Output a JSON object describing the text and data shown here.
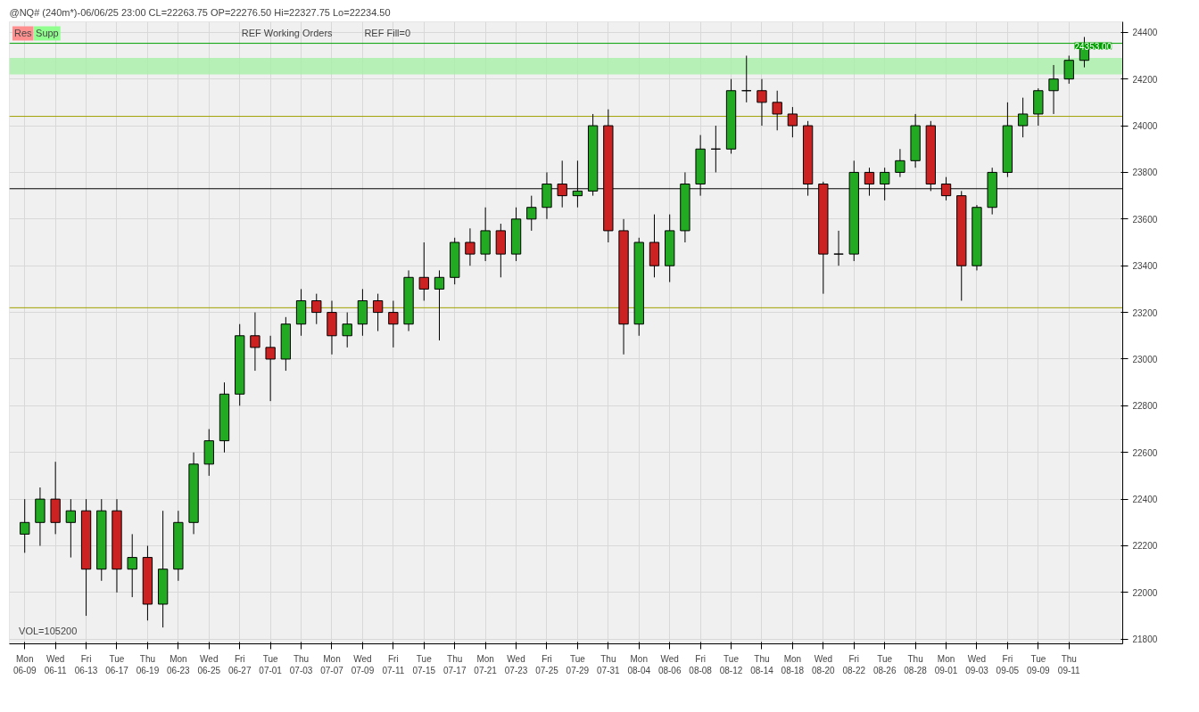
{
  "chart_data": {
    "type": "candlestick",
    "title": "@NQ# (240m*)-06/06/25 23:00 CL=22263.75 OP=22276.50 Hi=22327.75 Lo=22234.50",
    "categories": [
      "Mon\n06-09",
      null,
      "Wed\n06-11",
      null,
      "Fri\n06-13",
      null,
      "Tue\n06-17",
      null,
      "Thu\n06-19",
      null,
      "Mon\n06-23",
      null,
      "Wed\n06-25",
      null,
      "Fri\n06-27",
      null,
      "Tue\n07-01",
      null,
      "Thu\n07-03",
      null,
      "Mon\n07-07",
      null,
      "Wed\n07-09",
      null,
      "Fri\n07-11",
      null,
      "Tue\n07-15",
      null,
      "Thu\n07-17",
      null,
      "Mon\n07-21",
      null,
      "Wed\n07-23",
      null,
      "Fri\n07-25",
      null,
      "Tue\n07-29",
      null,
      "Thu\n07-31",
      null,
      "Mon\n08-04",
      null,
      "Wed\n08-06",
      null,
      "Fri\n08-08",
      null,
      "Tue\n08-12",
      null,
      "Thu\n08-14",
      null,
      "Mon\n08-18",
      null,
      "Wed\n08-20",
      null,
      "Fri\n08-22",
      null,
      "Tue\n08-26",
      null,
      "Thu\n08-28",
      null,
      "Mon\n09-01",
      null,
      "Wed\n09-03",
      null,
      "Fri\n09-05",
      null,
      "Tue\n09-09",
      null,
      "Thu\n09-11",
      null
    ],
    "ohlc": [
      [
        22250,
        22400,
        22170,
        22300
      ],
      [
        22300,
        22450,
        22200,
        22400
      ],
      [
        22400,
        22560,
        22250,
        22300
      ],
      [
        22300,
        22400,
        22150,
        22350
      ],
      [
        22350,
        22400,
        21900,
        22100
      ],
      [
        22100,
        22400,
        22050,
        22350
      ],
      [
        22350,
        22400,
        22000,
        22100
      ],
      [
        22100,
        22250,
        21980,
        22150
      ],
      [
        22150,
        22200,
        21880,
        21950
      ],
      [
        21950,
        22350,
        21850,
        22100
      ],
      [
        22100,
        22350,
        22050,
        22300
      ],
      [
        22300,
        22600,
        22250,
        22550
      ],
      [
        22550,
        22700,
        22500,
        22650
      ],
      [
        22650,
        22900,
        22600,
        22850
      ],
      [
        22850,
        23150,
        22800,
        23100
      ],
      [
        23100,
        23200,
        22950,
        23050
      ],
      [
        23050,
        23100,
        22820,
        23000
      ],
      [
        23000,
        23180,
        22950,
        23150
      ],
      [
        23150,
        23300,
        23100,
        23250
      ],
      [
        23250,
        23280,
        23150,
        23200
      ],
      [
        23200,
        23250,
        23020,
        23100
      ],
      [
        23100,
        23200,
        23050,
        23150
      ],
      [
        23150,
        23300,
        23100,
        23250
      ],
      [
        23250,
        23280,
        23120,
        23200
      ],
      [
        23200,
        23250,
        23050,
        23150
      ],
      [
        23150,
        23380,
        23120,
        23350
      ],
      [
        23350,
        23500,
        23250,
        23300
      ],
      [
        23300,
        23380,
        23080,
        23350
      ],
      [
        23350,
        23520,
        23320,
        23500
      ],
      [
        23500,
        23560,
        23400,
        23450
      ],
      [
        23450,
        23650,
        23420,
        23550
      ],
      [
        23550,
        23580,
        23350,
        23450
      ],
      [
        23450,
        23650,
        23420,
        23600
      ],
      [
        23600,
        23700,
        23550,
        23650
      ],
      [
        23650,
        23800,
        23600,
        23750
      ],
      [
        23750,
        23850,
        23650,
        23700
      ],
      [
        23700,
        23850,
        23650,
        23720
      ],
      [
        23720,
        24050,
        23700,
        24000
      ],
      [
        24000,
        24070,
        23500,
        23550
      ],
      [
        23550,
        23600,
        23020,
        23150
      ],
      [
        23150,
        23520,
        23100,
        23500
      ],
      [
        23500,
        23620,
        23350,
        23400
      ],
      [
        23400,
        23620,
        23330,
        23550
      ],
      [
        23550,
        23800,
        23500,
        23750
      ],
      [
        23750,
        23960,
        23700,
        23900
      ],
      [
        23900,
        24000,
        23800,
        23900
      ],
      [
        23900,
        24200,
        23880,
        24150
      ],
      [
        24150,
        24300,
        24100,
        24150
      ],
      [
        24150,
        24200,
        24000,
        24100
      ],
      [
        24100,
        24150,
        23980,
        24050
      ],
      [
        24050,
        24080,
        23950,
        24000
      ],
      [
        24000,
        24020,
        23700,
        23750
      ],
      [
        23750,
        23760,
        23280,
        23450
      ],
      [
        23450,
        23550,
        23400,
        23450
      ],
      [
        23450,
        23850,
        23420,
        23800
      ],
      [
        23800,
        23820,
        23700,
        23750
      ],
      [
        23750,
        23820,
        23680,
        23800
      ],
      [
        23800,
        23900,
        23780,
        23850
      ],
      [
        23850,
        24050,
        23820,
        24000
      ],
      [
        24000,
        24020,
        23720,
        23750
      ],
      [
        23750,
        23780,
        23680,
        23700
      ],
      [
        23700,
        23720,
        23250,
        23400
      ],
      [
        23400,
        23660,
        23380,
        23650
      ],
      [
        23650,
        23820,
        23620,
        23800
      ],
      [
        23800,
        24100,
        23780,
        24000
      ],
      [
        24000,
        24120,
        23950,
        24050
      ],
      [
        24050,
        24160,
        24000,
        24150
      ],
      [
        24150,
        24260,
        24050,
        24200
      ],
      [
        24200,
        24300,
        24180,
        24280
      ],
      [
        24280,
        24380,
        24250,
        24353
      ]
    ],
    "ylim": [
      21780,
      24445
    ],
    "yticks": [
      21800,
      22000,
      22200,
      22400,
      22600,
      22800,
      23000,
      23200,
      23400,
      23600,
      23800,
      24000,
      24200,
      24400
    ],
    "grid": true,
    "ref_lines": [
      {
        "axis": "y",
        "value": 24040,
        "color": "#a0a000"
      },
      {
        "axis": "y",
        "value": 23220,
        "color": "#a0a000"
      },
      {
        "axis": "y",
        "value": 23730,
        "color": "#000000"
      },
      {
        "axis": "y",
        "value": 24353,
        "label": "24353.00",
        "color": "#00a000"
      }
    ],
    "bands": [
      {
        "axis": "y",
        "from": 24220,
        "to": 24290,
        "color": "#a8f0a8"
      }
    ],
    "annotations": [
      "REF Working Orders",
      "REF Fill=0",
      "Res",
      "Supp",
      "VOL=105200"
    ]
  }
}
